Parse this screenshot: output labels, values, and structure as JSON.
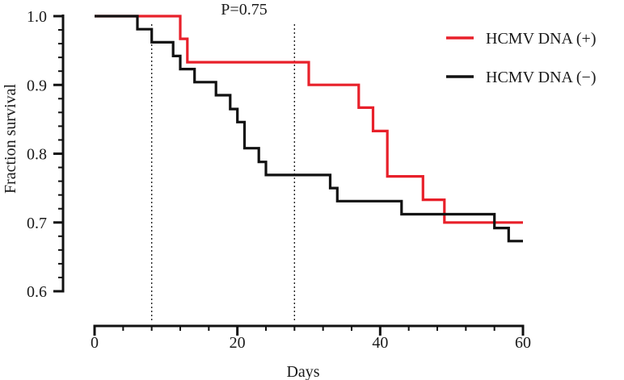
{
  "chart_data": {
    "type": "line",
    "step": true,
    "annotation": "P=0.75",
    "xlabel": "Days",
    "ylabel": "Fraction survival",
    "xlim": [
      0,
      60
    ],
    "ylim": [
      0.6,
      1.0
    ],
    "x_ticks": [
      0,
      20,
      40,
      60
    ],
    "y_ticks": [
      0.6,
      0.7,
      0.8,
      0.9,
      1.0
    ],
    "x_tick_labels": [
      "0",
      "20",
      "40",
      "60"
    ],
    "y_tick_labels": [
      "0.6",
      "0.7",
      "0.8",
      "0.9",
      "1.0"
    ],
    "grid": false,
    "legend_position": "top-right",
    "reference_lines_x": [
      8,
      28
    ],
    "series": [
      {
        "name": "HCMV DNA (+)",
        "color": "#e8202a",
        "points": [
          [
            0,
            1.0
          ],
          [
            12,
            1.0
          ],
          [
            12,
            0.967
          ],
          [
            13,
            0.967
          ],
          [
            13,
            0.933
          ],
          [
            14,
            0.933
          ],
          [
            30,
            0.933
          ],
          [
            30,
            0.9
          ],
          [
            37,
            0.9
          ],
          [
            37,
            0.867
          ],
          [
            39,
            0.867
          ],
          [
            39,
            0.833
          ],
          [
            41,
            0.833
          ],
          [
            41,
            0.767
          ],
          [
            46,
            0.767
          ],
          [
            46,
            0.733
          ],
          [
            49,
            0.733
          ],
          [
            49,
            0.7
          ],
          [
            60,
            0.7
          ]
        ]
      },
      {
        "name": "HCMV DNA (−)",
        "color": "#111111",
        "points": [
          [
            0,
            1.0
          ],
          [
            6,
            1.0
          ],
          [
            6,
            0.981
          ],
          [
            8,
            0.981
          ],
          [
            8,
            0.962
          ],
          [
            11,
            0.962
          ],
          [
            11,
            0.942
          ],
          [
            12,
            0.942
          ],
          [
            12,
            0.923
          ],
          [
            14,
            0.923
          ],
          [
            14,
            0.904
          ],
          [
            17,
            0.904
          ],
          [
            17,
            0.885
          ],
          [
            19,
            0.885
          ],
          [
            19,
            0.865
          ],
          [
            20,
            0.865
          ],
          [
            20,
            0.846
          ],
          [
            21,
            0.846
          ],
          [
            21,
            0.808
          ],
          [
            23,
            0.808
          ],
          [
            23,
            0.788
          ],
          [
            24,
            0.788
          ],
          [
            24,
            0.769
          ],
          [
            33,
            0.769
          ],
          [
            33,
            0.75
          ],
          [
            34,
            0.75
          ],
          [
            34,
            0.731
          ],
          [
            43,
            0.731
          ],
          [
            43,
            0.712
          ],
          [
            56,
            0.712
          ],
          [
            56,
            0.692
          ],
          [
            58,
            0.692
          ],
          [
            58,
            0.673
          ],
          [
            60,
            0.673
          ]
        ]
      }
    ]
  }
}
